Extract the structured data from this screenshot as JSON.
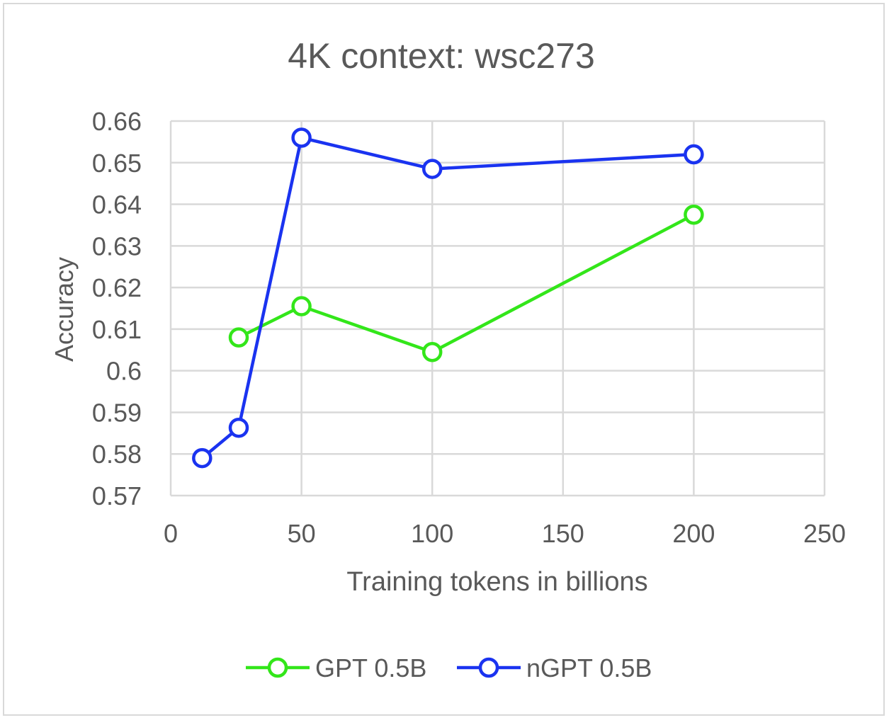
{
  "chart_data": {
    "type": "line",
    "title": "4K context: wsc273",
    "xlabel": "Training tokens in billions",
    "ylabel": "Accuracy",
    "xlim": [
      0,
      250
    ],
    "ylim": [
      0.57,
      0.66
    ],
    "xticks": [
      "0",
      "50",
      "100",
      "150",
      "200",
      "250"
    ],
    "yticks": [
      "0.57",
      "0.58",
      "0.59",
      "0.6",
      "0.61",
      "0.62",
      "0.63",
      "0.64",
      "0.65",
      "0.66"
    ],
    "grid": true,
    "legend_position": "bottom",
    "series": [
      {
        "name": "GPT 0.5B",
        "color": "#33e61a",
        "marker": "circle-open",
        "points": [
          [
            26,
            0.608
          ],
          [
            50,
            0.6155
          ],
          [
            100,
            0.6045
          ],
          [
            200,
            0.6375
          ]
        ]
      },
      {
        "name": "nGPT 0.5B",
        "color": "#1a33f0",
        "marker": "circle-open",
        "points": [
          [
            12,
            0.579
          ],
          [
            26,
            0.5863
          ],
          [
            50,
            0.656
          ],
          [
            100,
            0.6485
          ],
          [
            200,
            0.652
          ]
        ]
      }
    ]
  }
}
